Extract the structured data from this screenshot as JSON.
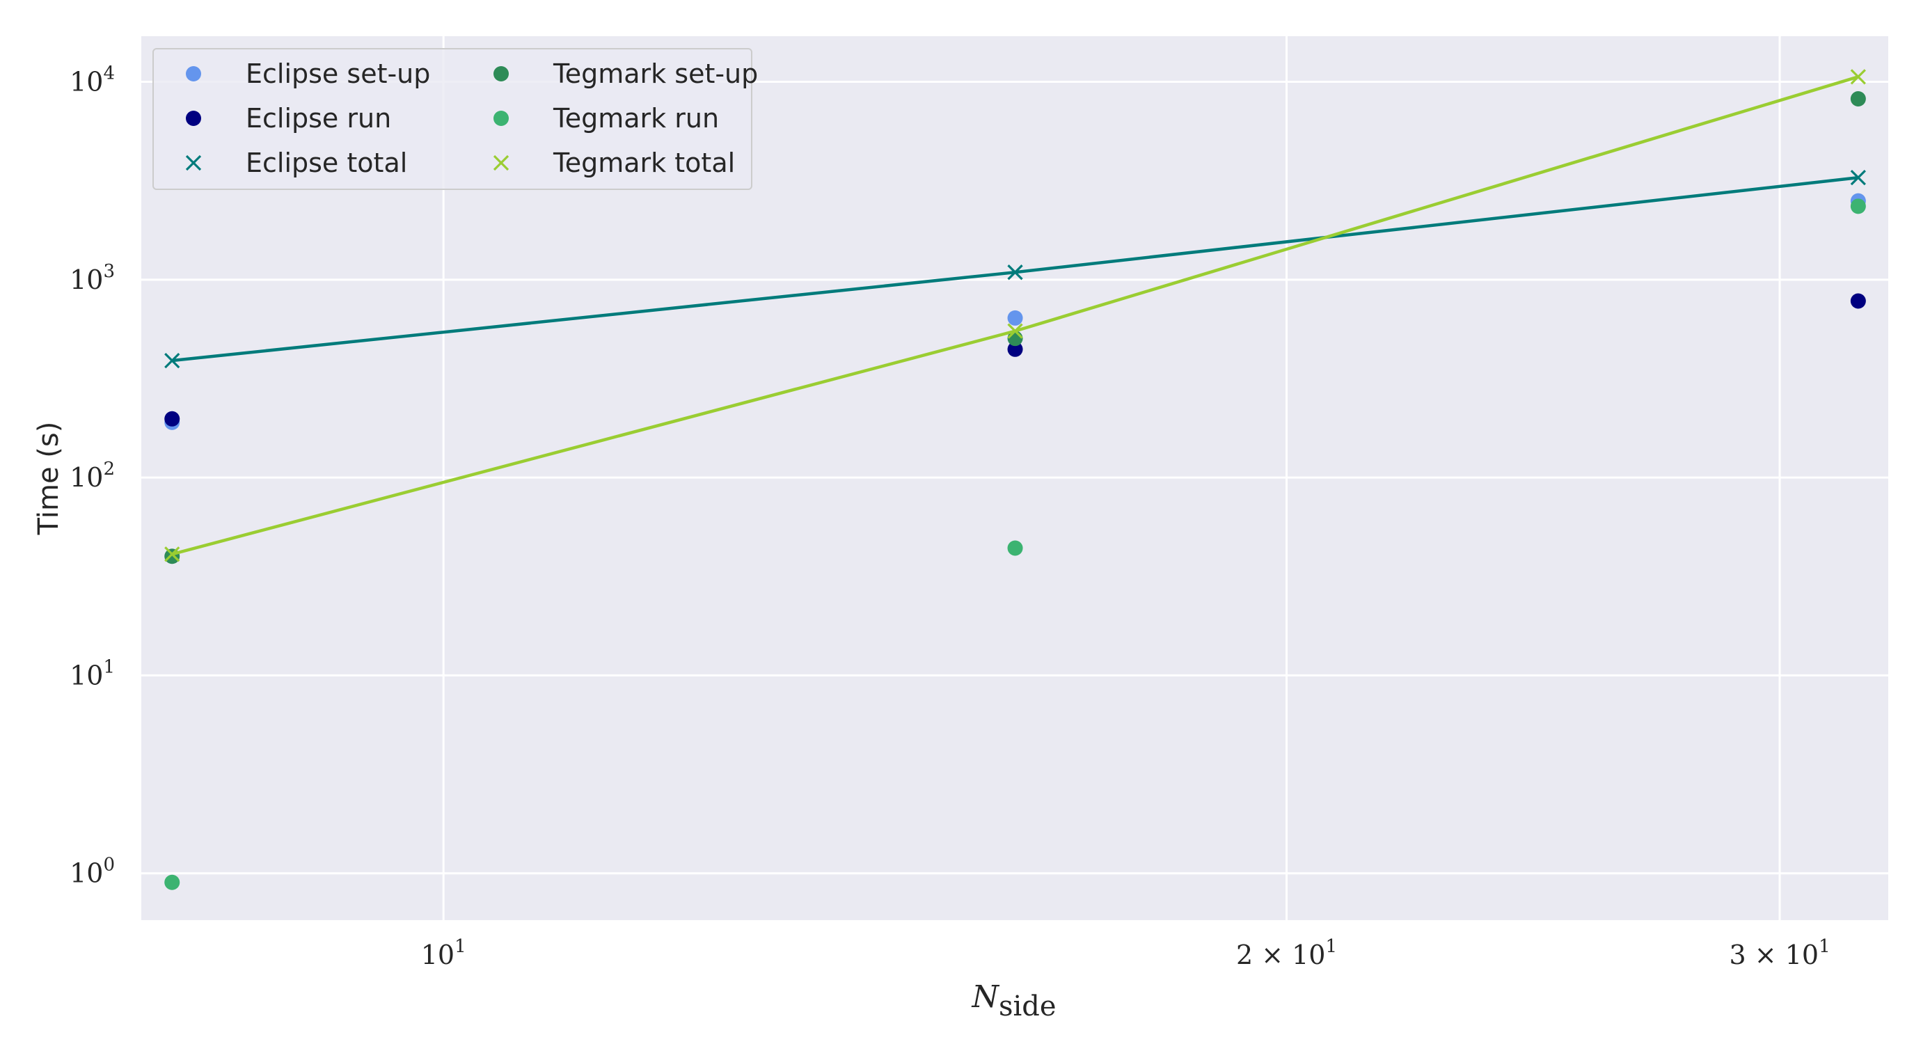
{
  "chart_data": {
    "type": "scatter",
    "title": "",
    "xlabel": {
      "base": "N",
      "subscript": "side"
    },
    "ylabel": "Time (s)",
    "xscale": "log",
    "yscale": "log",
    "xlim": [
      7.8,
      32.8
    ],
    "ylim": [
      0.58,
      17000
    ],
    "grid": true,
    "legend_position": "top-left",
    "legend_columns": 2,
    "xticks": [
      {
        "value": 10,
        "mantissa": "",
        "base": "10",
        "exponent": "1"
      },
      {
        "value": 20,
        "mantissa": "2 × ",
        "base": "10",
        "exponent": "1"
      },
      {
        "value": 30,
        "mantissa": "3 × ",
        "base": "10",
        "exponent": "1"
      }
    ],
    "yticks": [
      {
        "value": 1,
        "base": "10",
        "exponent": "0"
      },
      {
        "value": 10,
        "base": "10",
        "exponent": "1"
      },
      {
        "value": 100,
        "base": "10",
        "exponent": "2"
      },
      {
        "value": 1000,
        "base": "10",
        "exponent": "3"
      },
      {
        "value": 10000,
        "base": "10",
        "exponent": "4"
      }
    ],
    "series": [
      {
        "name": "Eclipse set-up",
        "color": "#6495ED",
        "marker": "circle",
        "line": false,
        "x": [
          8,
          16,
          32
        ],
        "y": [
          190,
          640,
          2500
        ]
      },
      {
        "name": "Eclipse run",
        "color": "#000080",
        "marker": "circle",
        "line": false,
        "x": [
          8,
          16,
          32
        ],
        "y": [
          198,
          445,
          780
        ]
      },
      {
        "name": "Eclipse total",
        "color": "#007B7B",
        "marker": "x",
        "line": true,
        "x": [
          8,
          16,
          32
        ],
        "y": [
          390,
          1090,
          3280
        ]
      },
      {
        "name": "Tegmark set-up",
        "color": "#2E8B57",
        "marker": "circle",
        "line": false,
        "x": [
          8,
          16,
          32
        ],
        "y": [
          40,
          505,
          8200
        ]
      },
      {
        "name": "Tegmark run",
        "color": "#3CB371",
        "marker": "circle",
        "line": false,
        "x": [
          8,
          16,
          32
        ],
        "y": [
          0.9,
          44,
          2350
        ]
      },
      {
        "name": "Tegmark total",
        "color": "#9ACD32",
        "marker": "x",
        "line": true,
        "x": [
          8,
          16,
          32
        ],
        "y": [
          41,
          550,
          10600
        ]
      }
    ]
  }
}
